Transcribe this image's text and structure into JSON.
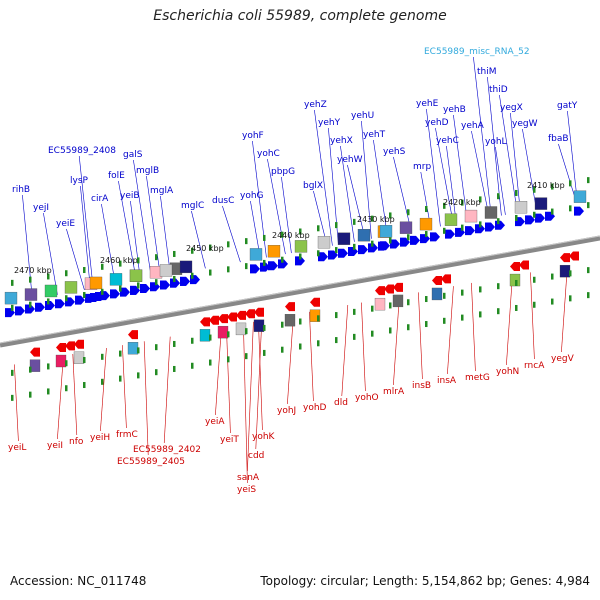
{
  "title": "Escherichia coli 55989, complete genome",
  "footer": {
    "accession": "Accession: NC_011748",
    "summary": "Topology: circular; Length: 5,154,862 bp; Genes: 4,984"
  },
  "colors": {
    "top_label": "#0000cc",
    "bottom_label": "#cc0000",
    "rna_label": "#33aadd",
    "forward_arrow": "#0000ee",
    "reverse_arrow": "#ee0000",
    "backbone": "#888888",
    "tick": "#228b22"
  },
  "kbp_ticks": [
    "2470 kbp",
    "2460 kbp",
    "2450 kbp",
    "2440 kbp",
    "2430 kbp",
    "2420 kbp",
    "2410 kbp"
  ],
  "top_genes": [
    "rihB",
    "yejI",
    "yeiE",
    "lysP",
    "cirA",
    "folE",
    "yeiB",
    "mglB",
    "galS",
    "mglA",
    "mglC",
    "dusC",
    "yohG",
    "yohF",
    "yohC",
    "pbpG",
    "bglX",
    "yehZ",
    "yehY",
    "yehX",
    "yehW",
    "yehU",
    "yehT",
    "yehS",
    "mrp",
    "yehE",
    "yehD",
    "yehC",
    "yehB",
    "yehA",
    "yohL",
    "thiM",
    "thiD",
    "yegX",
    "yegW",
    "fbaB",
    "gatY",
    "EC55989_2408",
    "EC55989_misc_RNA_52"
  ],
  "bottom_genes": [
    "yeiL",
    "yeiI",
    "nfo",
    "yeiH",
    "frmC",
    "EC55989_2402",
    "EC55989_2405",
    "yeiA",
    "yeiT",
    "sanA",
    "yeiS",
    "cdd",
    "yohK",
    "yohJ",
    "yohD",
    "dld",
    "yohO",
    "mlrA",
    "insB",
    "insA",
    "metG",
    "yohN",
    "rncA",
    "yegV"
  ]
}
